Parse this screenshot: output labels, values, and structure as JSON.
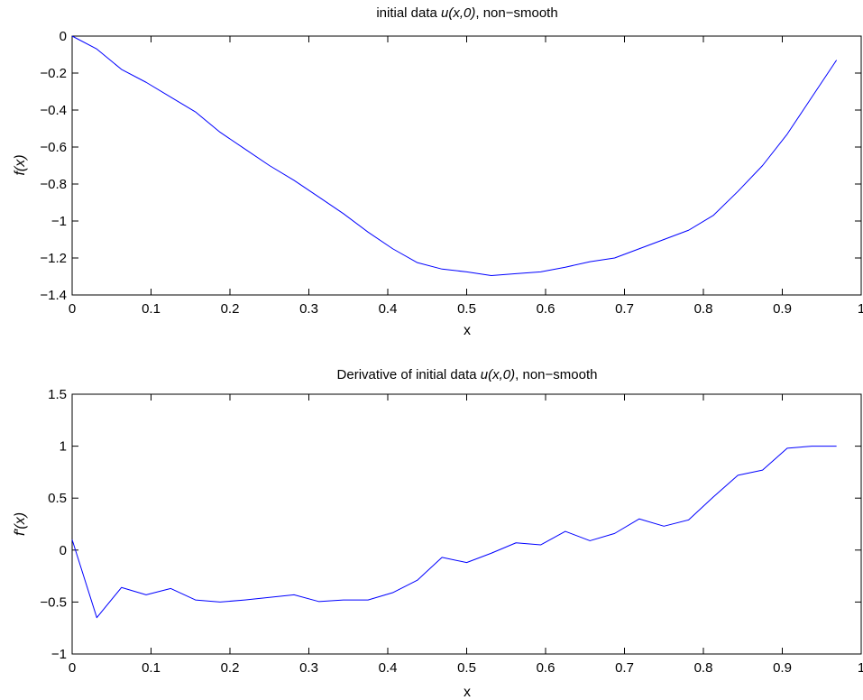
{
  "chart_data": [
    {
      "type": "line",
      "title_prefix": "initial data  ",
      "title_math": "u(x,0)",
      "title_suffix": ", non−smooth",
      "xlabel": "x",
      "ylabel": "f(x)",
      "xlim": [
        0,
        1
      ],
      "ylim": [
        -1.4,
        0
      ],
      "xticks": [
        0,
        0.1,
        0.2,
        0.3,
        0.4,
        0.5,
        0.6,
        0.7,
        0.8,
        0.9,
        1
      ],
      "xtick_labels": [
        "0",
        "0.1",
        "0.2",
        "0.3",
        "0.4",
        "0.5",
        "0.6",
        "0.7",
        "0.8",
        "0.9",
        "1"
      ],
      "yticks": [
        0,
        -0.2,
        -0.4,
        -0.6,
        -0.8,
        -1,
        -1.2,
        -1.4
      ],
      "ytick_labels": [
        "0",
        "−0.2",
        "−0.4",
        "−0.6",
        "−0.8",
        "−1",
        "−1.2",
        "−1.4"
      ],
      "grid": false,
      "line_color": "#0000ff",
      "x": [
        0,
        0.03125,
        0.0625,
        0.09375,
        0.125,
        0.15625,
        0.1875,
        0.21875,
        0.25,
        0.28125,
        0.3125,
        0.34375,
        0.375,
        0.40625,
        0.4375,
        0.46875,
        0.5,
        0.53125,
        0.5625,
        0.59375,
        0.625,
        0.65625,
        0.6875,
        0.71875,
        0.75,
        0.78125,
        0.8125,
        0.84375,
        0.875,
        0.90625,
        0.9375,
        0.96875
      ],
      "y": [
        0,
        -0.07,
        -0.18,
        -0.25,
        -0.33,
        -0.41,
        -0.52,
        -0.61,
        -0.7,
        -0.78,
        -0.87,
        -0.96,
        -1.06,
        -1.15,
        -1.225,
        -1.26,
        -1.275,
        -1.295,
        -1.285,
        -1.275,
        -1.25,
        -1.22,
        -1.2,
        -1.15,
        -1.1,
        -1.05,
        -0.97,
        -0.84,
        -0.7,
        -0.53,
        -0.33,
        -0.13
      ]
    },
    {
      "type": "line",
      "title_prefix": "Derivative of initial data  ",
      "title_math": "u(x,0)",
      "title_suffix": ", non−smooth",
      "xlabel": "x",
      "ylabel": "f′(x)",
      "xlim": [
        0,
        1
      ],
      "ylim": [
        -1,
        1.5
      ],
      "xticks": [
        0,
        0.1,
        0.2,
        0.3,
        0.4,
        0.5,
        0.6,
        0.7,
        0.8,
        0.9,
        1
      ],
      "xtick_labels": [
        "0",
        "0.1",
        "0.2",
        "0.3",
        "0.4",
        "0.5",
        "0.6",
        "0.7",
        "0.8",
        "0.9",
        "1"
      ],
      "yticks": [
        -1,
        -0.5,
        0,
        0.5,
        1,
        1.5
      ],
      "ytick_labels": [
        "−1",
        "−0.5",
        "0",
        "0.5",
        "1",
        "1.5"
      ],
      "grid": false,
      "line_color": "#0000ff",
      "x": [
        0,
        0.03125,
        0.0625,
        0.09375,
        0.125,
        0.15625,
        0.1875,
        0.21875,
        0.25,
        0.28125,
        0.3125,
        0.34375,
        0.375,
        0.40625,
        0.4375,
        0.46875,
        0.5,
        0.53125,
        0.5625,
        0.59375,
        0.625,
        0.65625,
        0.6875,
        0.71875,
        0.75,
        0.78125,
        0.8125,
        0.84375,
        0.875,
        0.90625,
        0.9375,
        0.96875
      ],
      "y": [
        0.1,
        -0.65,
        -0.36,
        -0.43,
        -0.37,
        -0.48,
        -0.5,
        -0.48,
        -0.455,
        -0.43,
        -0.495,
        -0.48,
        -0.48,
        -0.41,
        -0.29,
        -0.07,
        -0.12,
        -0.03,
        0.07,
        0.05,
        0.18,
        0.09,
        0.16,
        0.3,
        0.23,
        0.29,
        0.51,
        0.72,
        0.77,
        0.98,
        1.0,
        1.0
      ]
    }
  ]
}
